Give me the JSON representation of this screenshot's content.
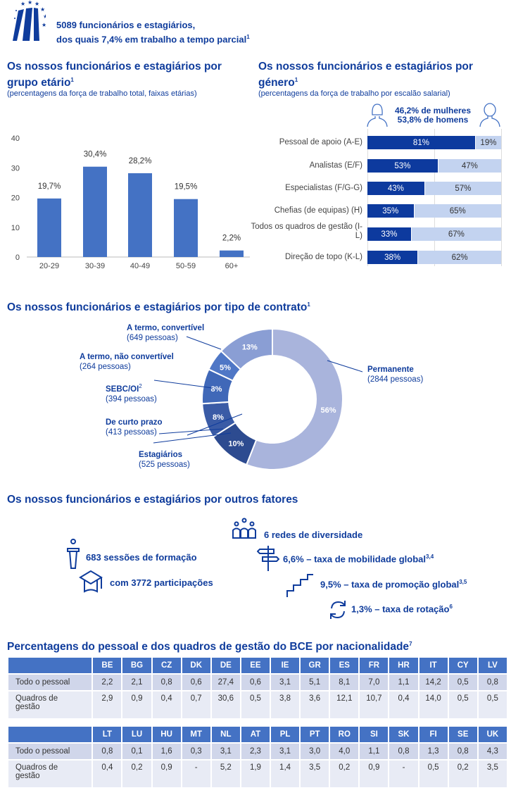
{
  "header": {
    "line1": "5089 funcionários e estagiários,",
    "line2": "dos quais 7,4%  em trabalho a tempo parcial",
    "sup": "1"
  },
  "age": {
    "title": "Os nossos funcionários e estagiários por grupo etário",
    "sup": "1",
    "subtitle": "(percentagens da força de trabalho total, faixas etárias)"
  },
  "gender": {
    "title": "Os nossos funcionários e estagiários por género",
    "sup": "1",
    "subtitle": "(percentagens da força de trabalho por escalão salarial)",
    "women": "46,2% de mulheres",
    "men": "53,8% de homens"
  },
  "contract": {
    "title": "Os nossos funcionários e estagiários por tipo de contrato",
    "sup": "1"
  },
  "factors": {
    "title": "Os nossos funcionários e estagiários por outros fatores",
    "diversity": "6 redes de diversidade",
    "training": "683 sessões de formação",
    "participations": "com 3772 participações",
    "mobility": "6,6%  – taxa de mobilidade global",
    "mobility_sup": "3,4",
    "promotion": "9,5%  – taxa de promoção global",
    "promotion_sup": "3,5",
    "rotation": "1,3%  – taxa de rotação",
    "rotation_sup": "6"
  },
  "nationality": {
    "title": "Percentagens do pessoal e dos quadros de gestão do BCE por nacionalidade",
    "sup": "7",
    "row_labels": [
      "Todo o pessoal",
      "Quadros de gestão"
    ],
    "blocks": [
      {
        "countries": [
          "BE",
          "BG",
          "CZ",
          "DK",
          "DE",
          "EE",
          "IE",
          "GR",
          "ES",
          "FR",
          "HR",
          "IT",
          "CY",
          "LV"
        ],
        "all": [
          "2,2",
          "2,1",
          "0,8",
          "0,6",
          "27,4",
          "0,6",
          "3,1",
          "5,1",
          "8,1",
          "7,0",
          "1,1",
          "14,2",
          "0,5",
          "0,8"
        ],
        "mgmt": [
          "2,9",
          "0,9",
          "0,4",
          "0,7",
          "30,6",
          "0,5",
          "3,8",
          "3,6",
          "12,1",
          "10,7",
          "0,4",
          "14,0",
          "0,5",
          "0,5"
        ]
      },
      {
        "countries": [
          "LT",
          "LU",
          "HU",
          "MT",
          "NL",
          "AT",
          "PL",
          "PT",
          "RO",
          "SI",
          "SK",
          "FI",
          "SE",
          "UK"
        ],
        "all": [
          "0,8",
          "0,1",
          "1,6",
          "0,3",
          "3,1",
          "2,3",
          "3,1",
          "3,0",
          "4,0",
          "1,1",
          "0,8",
          "1,3",
          "0,8",
          "4,3"
        ],
        "mgmt": [
          "0,4",
          "0,2",
          "0,9",
          "-",
          "5,2",
          "1,9",
          "1,4",
          "3,5",
          "0,2",
          "0,9",
          "-",
          "0,5",
          "0,2",
          "3,5"
        ]
      }
    ]
  },
  "colors": {
    "accent": "#0f3c9c",
    "bar": "#4472c4",
    "women": "#0d3a9e",
    "men": "#c3d3f0"
  },
  "chart_data": [
    {
      "type": "bar",
      "title": "Os nossos funcionários e estagiários por grupo etário",
      "categories": [
        "20-29",
        "30-39",
        "40-49",
        "50-59",
        "60+"
      ],
      "values": [
        19.7,
        30.4,
        28.2,
        19.5,
        2.2
      ],
      "labels": [
        "19,7%",
        "30,4%",
        "28,2%",
        "19,5%",
        "2,2%"
      ],
      "yticks": [
        "0",
        "10",
        "20",
        "30",
        "40"
      ],
      "ylim": [
        0,
        40
      ],
      "grid": false
    },
    {
      "type": "bar",
      "stacked": true,
      "orientation": "horizontal",
      "title": "Os nossos funcionários e estagiários por género",
      "categories": [
        "Pessoal de apoio (A-E)",
        "Analistas (E/F)",
        "Especialistas (F/G-G)",
        "Chefias (de equipas) (H)",
        "Todos os quadros de gestão (I-L)",
        "Direção de topo (K-L)"
      ],
      "series": [
        {
          "name": "Mulheres",
          "values": [
            81,
            53,
            43,
            35,
            33,
            38
          ],
          "labels": [
            "81%",
            "53%",
            "43%",
            "35%",
            "33%",
            "38%"
          ]
        },
        {
          "name": "Homens",
          "values": [
            19,
            47,
            57,
            65,
            67,
            62
          ],
          "labels": [
            "19%",
            "47%",
            "57%",
            "65%",
            "67%",
            "62%"
          ]
        }
      ]
    },
    {
      "type": "pie",
      "donut": true,
      "title": "Os nossos funcionários e estagiários por tipo de contrato",
      "slices": [
        {
          "name": "Permanente",
          "count": "(2844 pessoas)",
          "value": 56,
          "label": "56%",
          "color": "#a9b4dc"
        },
        {
          "name": "Estagiários",
          "count": "(525 pessoas)",
          "value": 10,
          "label": "10%",
          "color": "#2d4b90"
        },
        {
          "name": "De curto prazo",
          "count": "(413 pessoas)",
          "value": 8,
          "label": "8%",
          "color": "#3a5ba6"
        },
        {
          "name": "SEBC/OI",
          "sup": "2",
          "count": "(394 pessoas)",
          "value": 8,
          "label": "8%",
          "color": "#4068b8"
        },
        {
          "name": "A termo, não convertível",
          "count": "(264 pessoas)",
          "value": 5,
          "label": "5%",
          "color": "#4f77c6"
        },
        {
          "name": "A termo, convertível",
          "count": "(649 pessoas)",
          "value": 13,
          "label": "13%",
          "color": "#8a9ed4"
        }
      ]
    }
  ]
}
